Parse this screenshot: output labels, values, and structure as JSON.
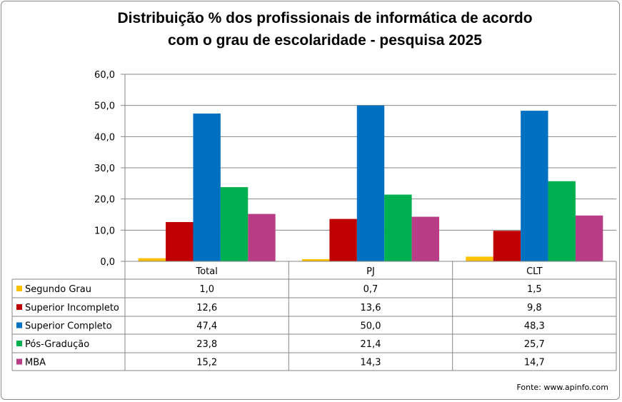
{
  "chart_data": {
    "type": "bar",
    "title": [
      "Distribuição % dos profissionais de informática de acordo",
      "com o grau de escolaridade - pesquisa 2025"
    ],
    "categories": [
      "Total",
      "PJ",
      "CLT"
    ],
    "series": [
      {
        "name": "Segundo Grau",
        "color": "#FFC000",
        "values": [
          1.0,
          0.7,
          1.5
        ]
      },
      {
        "name": "Superior Incompleto",
        "color": "#C00000",
        "values": [
          12.6,
          13.6,
          9.8
        ]
      },
      {
        "name": "Superior Completo",
        "color": "#0070C0",
        "values": [
          47.4,
          50.0,
          48.3
        ]
      },
      {
        "name": "Pós-Gradução",
        "color": "#00B050",
        "values": [
          23.8,
          21.4,
          25.7
        ]
      },
      {
        "name": "MBA",
        "color": "#B83C86",
        "values": [
          15.2,
          14.3,
          14.7
        ]
      }
    ],
    "value_labels": [
      [
        "1,0",
        "0,7",
        "1,5"
      ],
      [
        "12,6",
        "13,6",
        "9,8"
      ],
      [
        "47,4",
        "50,0",
        "48,3"
      ],
      [
        "23,8",
        "21,4",
        "25,7"
      ],
      [
        "15,2",
        "14,3",
        "14,7"
      ]
    ],
    "ylim": [
      0,
      60
    ],
    "yticks": [
      "0,0",
      "10,0",
      "20,0",
      "30,0",
      "40,0",
      "50,0",
      "60,0"
    ],
    "grid": true,
    "legend": "data-table",
    "source": "Fonte: www.apinfo.com"
  }
}
